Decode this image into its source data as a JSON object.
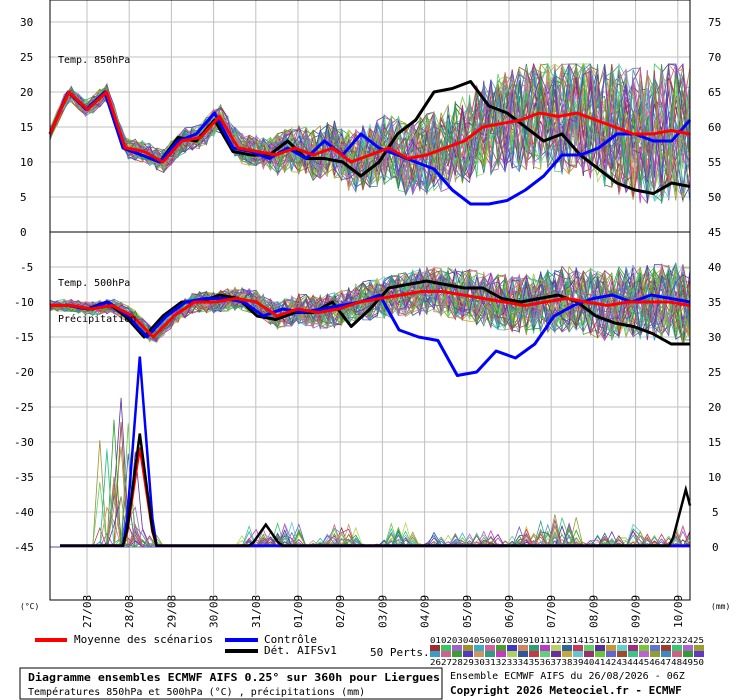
{
  "chart_data": {
    "type": "line",
    "dates": [
      "27/08",
      "28/08",
      "29/08",
      "30/08",
      "31/08",
      "01/09",
      "02/09",
      "03/09",
      "04/09",
      "05/09",
      "06/09",
      "07/09",
      "08/09",
      "09/09",
      "10/09"
    ],
    "left_axis_unit": "(°C)",
    "right_axis_unit": "(mm)",
    "panels": [
      {
        "label": "Temp. 850hPa",
        "left_ticks": [
          "30",
          "25",
          "20",
          "15",
          "10",
          "5",
          "0"
        ],
        "right_ticks": [
          "75",
          "70",
          "65",
          "60",
          "55",
          "50"
        ],
        "ylim": [
          0,
          30
        ],
        "series": [
          {
            "name": "Moyenne des scénarios",
            "color": "#ff0000",
            "values": [
              14,
              20,
              17.5,
              20,
              12,
              11.5,
              10,
              13,
              13.5,
              16.5,
              12,
              11.5,
              11,
              12,
              11,
              12,
              10,
              11,
              12,
              10.5,
              11,
              12,
              13,
              15,
              15.5,
              16,
              17,
              16.5,
              17,
              16,
              15,
              14,
              14,
              14.5,
              14
            ]
          },
          {
            "name": "Contrôle",
            "color": "#0000ff",
            "values": [
              14,
              20,
              17.5,
              20,
              12,
              11,
              10,
              13,
              14,
              17,
              12,
              11.5,
              10.5,
              12,
              10.5,
              13,
              11,
              14,
              12,
              11,
              10,
              9,
              6,
              4,
              4,
              4.5,
              6,
              8,
              11,
              11,
              12,
              14,
              14,
              13,
              13,
              16
            ]
          },
          {
            "name": "Dét. AIFSv1",
            "color": "#000000",
            "values": [
              14,
              20,
              17.5,
              20,
              12,
              11,
              10,
              13.5,
              13,
              16,
              11.5,
              11,
              11,
              13,
              10.5,
              10.5,
              10,
              8,
              10,
              14,
              16,
              20,
              20.5,
              21.5,
              18,
              17,
              15,
              13,
              14,
              11,
              9,
              7,
              6,
              5.5,
              7,
              6.5
            ]
          }
        ]
      },
      {
        "label": "Temp. 500hPa",
        "left_ticks": [
          "-5",
          "-10",
          "-15",
          "-20",
          "-25",
          "-30",
          "-35",
          "-40",
          "-45"
        ],
        "right_ticks": [
          "45",
          "40",
          "35",
          "30",
          "25",
          "20",
          "15",
          "10",
          "5",
          "0"
        ],
        "ylim": [
          -50,
          0
        ],
        "series": [
          {
            "name": "Moyenne des scénarios",
            "color": "#ff0000",
            "values": [
              -10.5,
              -10.5,
              -11,
              -10.5,
              -12,
              -15,
              -12,
              -10,
              -10,
              -9.5,
              -10,
              -12,
              -11,
              -11.5,
              -11,
              -10,
              -9.5,
              -9,
              -8.5,
              -8.5,
              -9,
              -9.5,
              -10,
              -10.5,
              -10,
              -9.5,
              -10,
              -10.5,
              -10,
              -10,
              -10,
              -10.5
            ]
          },
          {
            "name": "Contrôle",
            "color": "#0000ff",
            "values": [
              -10.5,
              -10.5,
              -11,
              -10,
              -12,
              -15,
              -12,
              -10,
              -9.5,
              -9.5,
              -10,
              -12,
              -11,
              -11.5,
              -11,
              -10.5,
              -10,
              -9,
              -14,
              -15,
              -15.5,
              -20.5,
              -20,
              -17,
              -18,
              -16,
              -12,
              -10.5,
              -9.5,
              -9,
              -10,
              -9,
              -9.5,
              -10
            ]
          },
          {
            "name": "Dét. AIFSv1",
            "color": "#000000",
            "values": [
              -10.5,
              -10.5,
              -11,
              -10,
              -12,
              -15,
              -12,
              -10,
              -10,
              -9,
              -9.5,
              -12,
              -12.5,
              -11.5,
              -11.5,
              -10,
              -13.5,
              -11,
              -8,
              -7.5,
              -7,
              -7.5,
              -8,
              -8,
              -9.5,
              -10,
              -9.5,
              -9,
              -10,
              -12,
              -13,
              -13.5,
              -14.5,
              -16,
              -16
            ]
          }
        ]
      }
    ],
    "precipitation": {
      "label": "Précipitation",
      "peak_values_mm": [
        3,
        12,
        22,
        1,
        1,
        4,
        1,
        1,
        1,
        1,
        1,
        1,
        1,
        1,
        1,
        1,
        1,
        1,
        1,
        1,
        1,
        2,
        5,
        3,
        1,
        6,
        12
      ]
    },
    "legend": {
      "mean": "Moyenne des scénarios",
      "control": "Contrôle",
      "det": "Dét. AIFSv1",
      "perts_label": "50 Perts.",
      "perts_row1": "01020304050607080910111213141516171819202122232425",
      "perts_row2": "26272829303132333435363738394041424344454647484950"
    },
    "colors": {
      "mean": "#ff0000",
      "control": "#0000ff",
      "det": "#000000",
      "grid": "#c0c0c0",
      "frame": "#000000"
    }
  },
  "footer": {
    "title": "Diagramme ensembles ECMWF AIFS 0.25° sur 360h pour Liergues",
    "subtitle": "Températures 850hPa et 500hPa (°C) , précipitations (mm)",
    "run_info": "Ensemble ECMWF AIFS du 26/08/2026 - 06Z",
    "copyright": "Copyright 2026 Meteociel.fr - ECMWF"
  }
}
